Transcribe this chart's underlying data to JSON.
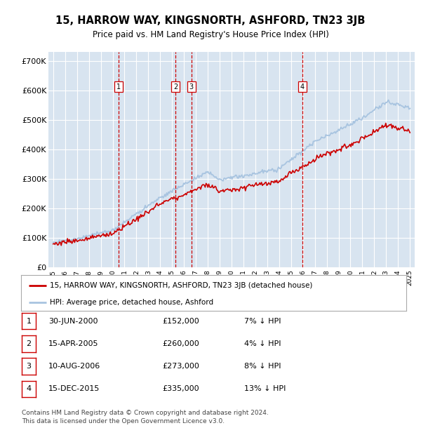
{
  "title": "15, HARROW WAY, KINGSNORTH, ASHFORD, TN23 3JB",
  "subtitle": "Price paid vs. HM Land Registry's House Price Index (HPI)",
  "background_color": "#ffffff",
  "plot_bg_color": "#d8e4f0",
  "grid_color": "#ffffff",
  "ylim": [
    0,
    730000
  ],
  "yticks": [
    0,
    100000,
    200000,
    300000,
    400000,
    500000,
    600000,
    700000
  ],
  "ytick_labels": [
    "£0",
    "£100K",
    "£200K",
    "£300K",
    "£400K",
    "£500K",
    "£600K",
    "£700K"
  ],
  "purchases": [
    {
      "label": "1",
      "date": "30-JUN-2000",
      "price": 152000,
      "note": "7% ↓ HPI",
      "year": 2000.5
    },
    {
      "label": "2",
      "date": "15-APR-2005",
      "price": 260000,
      "note": "4% ↓ HPI",
      "year": 2005.29
    },
    {
      "label": "3",
      "date": "10-AUG-2006",
      "price": 273000,
      "note": "8% ↓ HPI",
      "year": 2006.62
    },
    {
      "label": "4",
      "date": "15-DEC-2015",
      "price": 335000,
      "note": "13% ↓ HPI",
      "year": 2015.96
    }
  ],
  "legend_line1": "15, HARROW WAY, KINGSNORTH, ASHFORD, TN23 3JB (detached house)",
  "legend_line2": "HPI: Average price, detached house, Ashford",
  "footer": "Contains HM Land Registry data © Crown copyright and database right 2024.\nThis data is licensed under the Open Government Licence v3.0.",
  "hpi_color": "#a8c4e0",
  "price_color": "#cc0000",
  "vline_color": "#cc0000",
  "xlim_left": 1994.6,
  "xlim_right": 2025.4
}
